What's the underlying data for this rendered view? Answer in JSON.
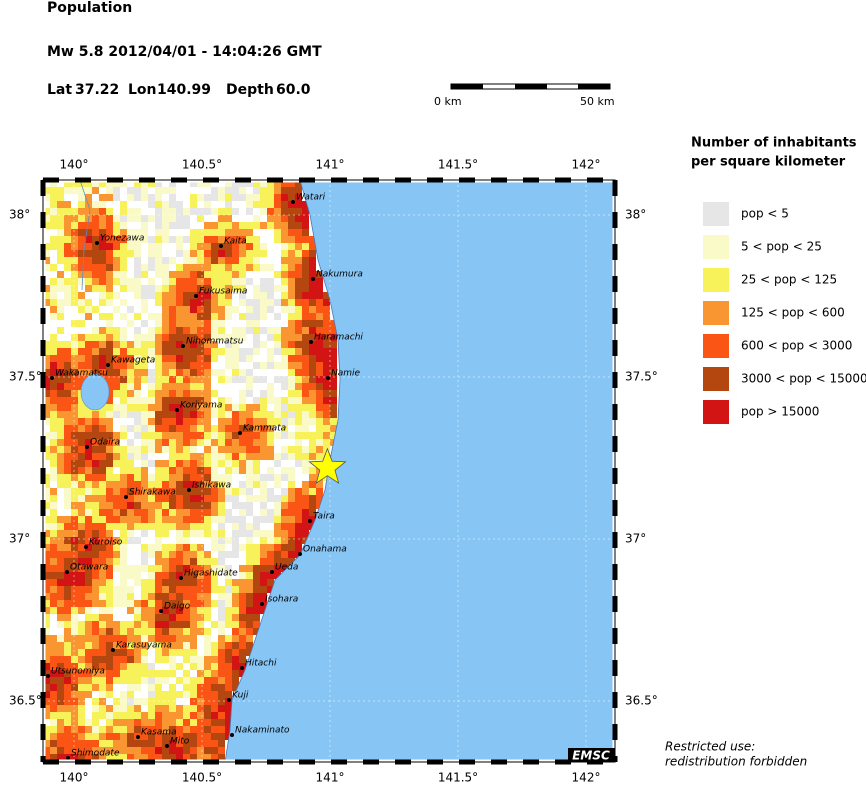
{
  "header": {
    "title": "Population",
    "event": "Mw 5.8  2012/04/01 - 14:04:26 GMT",
    "lat_label": "Lat",
    "lat": 37.22,
    "lon_label": "Lon",
    "lon": 140.99,
    "depth_label": "Depth",
    "depth": "60.0"
  },
  "scale": {
    "start": "0 km",
    "end": "50 km"
  },
  "map": {
    "lon_ticks": [
      {
        "value": 140,
        "label": "140°"
      },
      {
        "value": 140.5,
        "label": "140.5°"
      },
      {
        "value": 141,
        "label": "141°"
      },
      {
        "value": 141.5,
        "label": "141.5°"
      },
      {
        "value": 142,
        "label": "142°"
      }
    ],
    "lat_ticks": [
      {
        "value": 38,
        "label": "38°"
      },
      {
        "value": 37.5,
        "label": "37.5°"
      },
      {
        "value": 37,
        "label": "37°"
      },
      {
        "value": 36.5,
        "label": "36.5°"
      }
    ],
    "cities": [
      "Watari",
      "Yonezawa",
      "Kaita",
      "Nakumura",
      "Fukusaima",
      "Haramachi",
      "Nihommatsu",
      "Kawageta",
      "Namie",
      "Wakamatsu",
      "Koriyama",
      "Kammata",
      "Odaira",
      "Ishikawa",
      "Shirakawa",
      "Taira",
      "Onahama",
      "Kuroiso",
      "Ueda",
      "Otawara",
      "Higashidate",
      "Isohara",
      "Daigo",
      "Karasuyama",
      "Hitachi",
      "Utsunomiya",
      "Kuji",
      "Kasama",
      "Nakaminato",
      "Mito",
      "Shimodate"
    ],
    "credit": "EMSC"
  },
  "legend": {
    "title": [
      "Number of inhabitants",
      "per square kilometer"
    ],
    "items": [
      {
        "label": "pop < 5",
        "color": "#e6e6e6"
      },
      {
        "label": "5 < pop < 25",
        "color": "#fafac8"
      },
      {
        "label": "25 < pop < 125",
        "color": "#f8f25a"
      },
      {
        "label": "125 < pop < 600",
        "color": "#fa9632"
      },
      {
        "label": "600 < pop < 3000",
        "color": "#fa5514"
      },
      {
        "label": "3000 < pop < 15000",
        "color": "#b4460f"
      },
      {
        "label": "pop > 15000",
        "color": "#d21414"
      }
    ]
  },
  "footer": [
    "Restricted use:",
    "redistribution forbidden"
  ]
}
